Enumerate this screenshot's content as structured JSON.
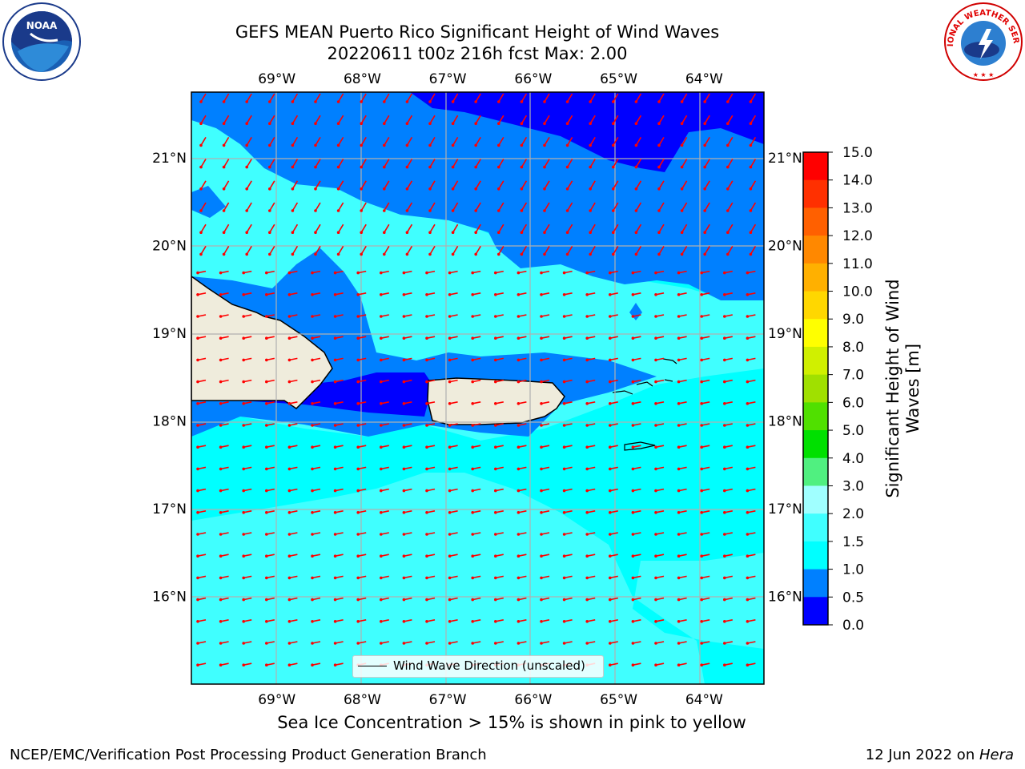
{
  "title": {
    "line1": "GEFS MEAN Puerto Rico Significant Height of Wind Waves",
    "line2": "20220611 t00z 216h fcst   Max: 2.00"
  },
  "logos": {
    "left": "NOAA",
    "right": "NATIONAL WEATHER SERVICE"
  },
  "map": {
    "lon_labels": [
      "69°W",
      "68°W",
      "67°W",
      "66°W",
      "65°W",
      "64°W"
    ],
    "lat_labels": [
      "21°N",
      "20°N",
      "19°N",
      "18°N",
      "17°N",
      "16°N"
    ],
    "lon_values": [
      -69,
      -68,
      -67,
      -66,
      -65,
      -64
    ],
    "lat_values": [
      21,
      20,
      19,
      18,
      17,
      16
    ],
    "extent": {
      "lon_min": -70,
      "lon_max": -63.3,
      "lat_min": 15.0,
      "lat_max": 21.75
    },
    "arrow_color": "#ff0000",
    "legend_label": "Wind Wave Direction (unscaled)"
  },
  "colorbar": {
    "label": "Significant Height of Wind Waves [m]",
    "ticks": [
      "15.0",
      "14.0",
      "13.0",
      "12.0",
      "11.0",
      "10.0",
      "9.0",
      "8.0",
      "7.0",
      "6.0",
      "5.0",
      "4.0",
      "3.0",
      "2.0",
      "1.5",
      "1.0",
      "0.5",
      "0.0"
    ],
    "levels": [
      0.0,
      0.5,
      1.0,
      1.5,
      2.0,
      3.0,
      4.0,
      5.0,
      6.0,
      7.0,
      8.0,
      9.0,
      10.0,
      11.0,
      12.0,
      13.0,
      14.0,
      15.0
    ],
    "colors": [
      "#0000ff",
      "#0080ff",
      "#00ffff",
      "#40ffff",
      "#a0ffff",
      "#50f080",
      "#00e000",
      "#50e000",
      "#a0e000",
      "#d0f000",
      "#ffff00",
      "#ffd700",
      "#ffb000",
      "#ff8800",
      "#ff6000",
      "#ff3000",
      "#ff0000"
    ]
  },
  "ice_note": "Sea Ice Concentration > 15% is shown in pink to yellow",
  "footer": {
    "left": "NCEP/EMC/Verification Post Processing Product Generation Branch",
    "right_date": "12 Jun 2022 on ",
    "right_host": "Hera"
  }
}
